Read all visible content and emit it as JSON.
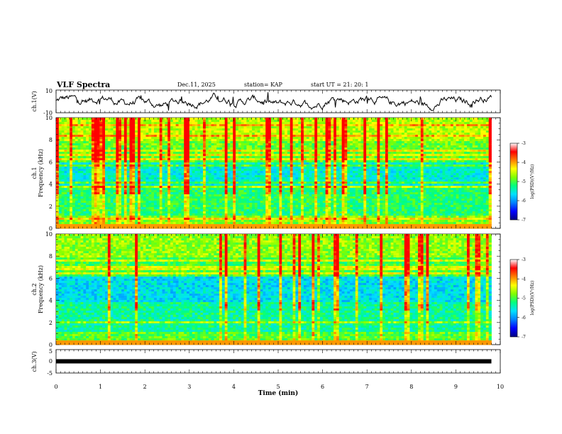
{
  "header": {
    "title": "VLF Spectra",
    "date": "Dec.11, 2025",
    "station": "station= KAP",
    "start": "start  UT  =   21: 20: 1"
  },
  "chart_data": {
    "type": "heatmap",
    "x": {
      "label": "Time  (min)",
      "lim": [
        0,
        10
      ],
      "ticks": [
        "0",
        "1",
        "2",
        "3",
        "4",
        "5",
        "6",
        "7",
        "8",
        "9",
        "10"
      ]
    },
    "panels": [
      {
        "kind": "line",
        "ylabel": "ch.1(V)",
        "ylim": [
          -10,
          10
        ],
        "yticks": [
          "10",
          "-10"
        ],
        "series_range": [
          -8,
          8
        ]
      },
      {
        "kind": "spectrogram",
        "ylabel": "ch.1",
        "ylabel2": "Frequency  (kHz)",
        "ylim": [
          0,
          10
        ],
        "yticks": [
          "0",
          "2",
          "4",
          "6",
          "8",
          "10"
        ],
        "time_range_min": [
          0,
          9.8
        ]
      },
      {
        "kind": "spectrogram",
        "ylabel": "ch.2",
        "ylabel2": "Frequency  (kHz)",
        "ylim": [
          0,
          10
        ],
        "yticks": [
          "0",
          "2",
          "4",
          "6",
          "8",
          "10"
        ],
        "time_range_min": [
          0,
          9.8
        ]
      },
      {
        "kind": "line",
        "ylabel": "ch.3(V)",
        "ylim": [
          -5,
          5
        ],
        "yticks": [
          "5",
          "0",
          "-5"
        ],
        "series_value": 0,
        "time_range_min": [
          0,
          9.8
        ]
      }
    ],
    "colorbars": [
      {
        "label": "log(PSD)(V²/Hz)",
        "range": [
          -7,
          -3
        ],
        "ticks": [
          "-3",
          "-4",
          "-5",
          "-6",
          "-7"
        ],
        "colors": [
          "#000080",
          "#0000ff",
          "#0080ff",
          "#00e0ff",
          "#00ff80",
          "#80ff00",
          "#ffff00",
          "#ff8000",
          "#ff0000",
          "#ffffff"
        ]
      },
      {
        "label": "log(PSD)(V²/Hz)",
        "range": [
          -7,
          -3
        ],
        "ticks": [
          "-3",
          "-4",
          "-5",
          "-6",
          "-7"
        ],
        "colors": [
          "#000080",
          "#0000ff",
          "#0080ff",
          "#00e0ff",
          "#00ff80",
          "#80ff00",
          "#ffff00",
          "#ff8000",
          "#ff0000",
          "#ffffff"
        ]
      }
    ]
  }
}
